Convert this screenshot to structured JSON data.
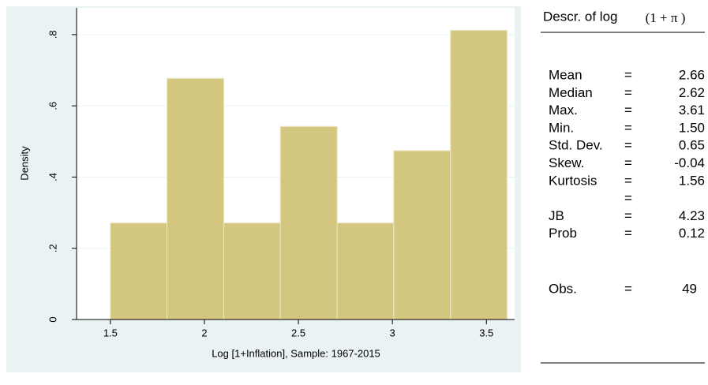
{
  "chart_data": {
    "type": "histogram",
    "bins": [
      1.5,
      1.801,
      2.103,
      2.404,
      2.706,
      3.007,
      3.309,
      3.61
    ],
    "values": [
      0.271,
      0.677,
      0.271,
      0.542,
      0.271,
      0.474,
      0.812
    ],
    "color": "#d3c67f",
    "xlim": [
      1.32,
      3.65
    ],
    "xticks": [
      1.5,
      2,
      2.5,
      3,
      3.5
    ],
    "ylim": [
      0,
      0.875
    ],
    "yticks": [
      0,
      {
        "value": 0.2,
        "label": ".2"
      },
      {
        "value": 0.4,
        "label": ".4"
      },
      {
        "value": 0.6,
        "label": ".6"
      },
      {
        "value": 0.8,
        "label": ".8"
      }
    ],
    "ylabel": "Density",
    "xlabel": "Log [1+Inflation], Sample: 1967-2015",
    "grid": true
  },
  "stats_table": {
    "title": "Descr. of log",
    "title_expr": "(1 + π )",
    "rows": [
      {
        "label": "Mean",
        "sign": "=",
        "value": "2.66"
      },
      {
        "label": "Median",
        "sign": "=",
        "value": "2.62"
      },
      {
        "label": "Max.",
        "sign": "=",
        "value": "3.61"
      },
      {
        "label": "Min.",
        "sign": "=",
        "value": "1.50"
      },
      {
        "label": "Std. Dev.",
        "sign": "=",
        "value": "0.65"
      },
      {
        "label": "Skew.",
        "sign": "=",
        "value": "-0.04"
      },
      {
        "label": "Kurtosis",
        "sign": "=",
        "value": "1.56"
      },
      {
        "sign": "="
      },
      {
        "label": "JB",
        "sign": "=",
        "value": "4.23"
      },
      {
        "label": "Prob",
        "sign": "=",
        "value": "0.12"
      }
    ],
    "obs": {
      "label": "Obs.",
      "sign": "=",
      "value": "49"
    }
  }
}
